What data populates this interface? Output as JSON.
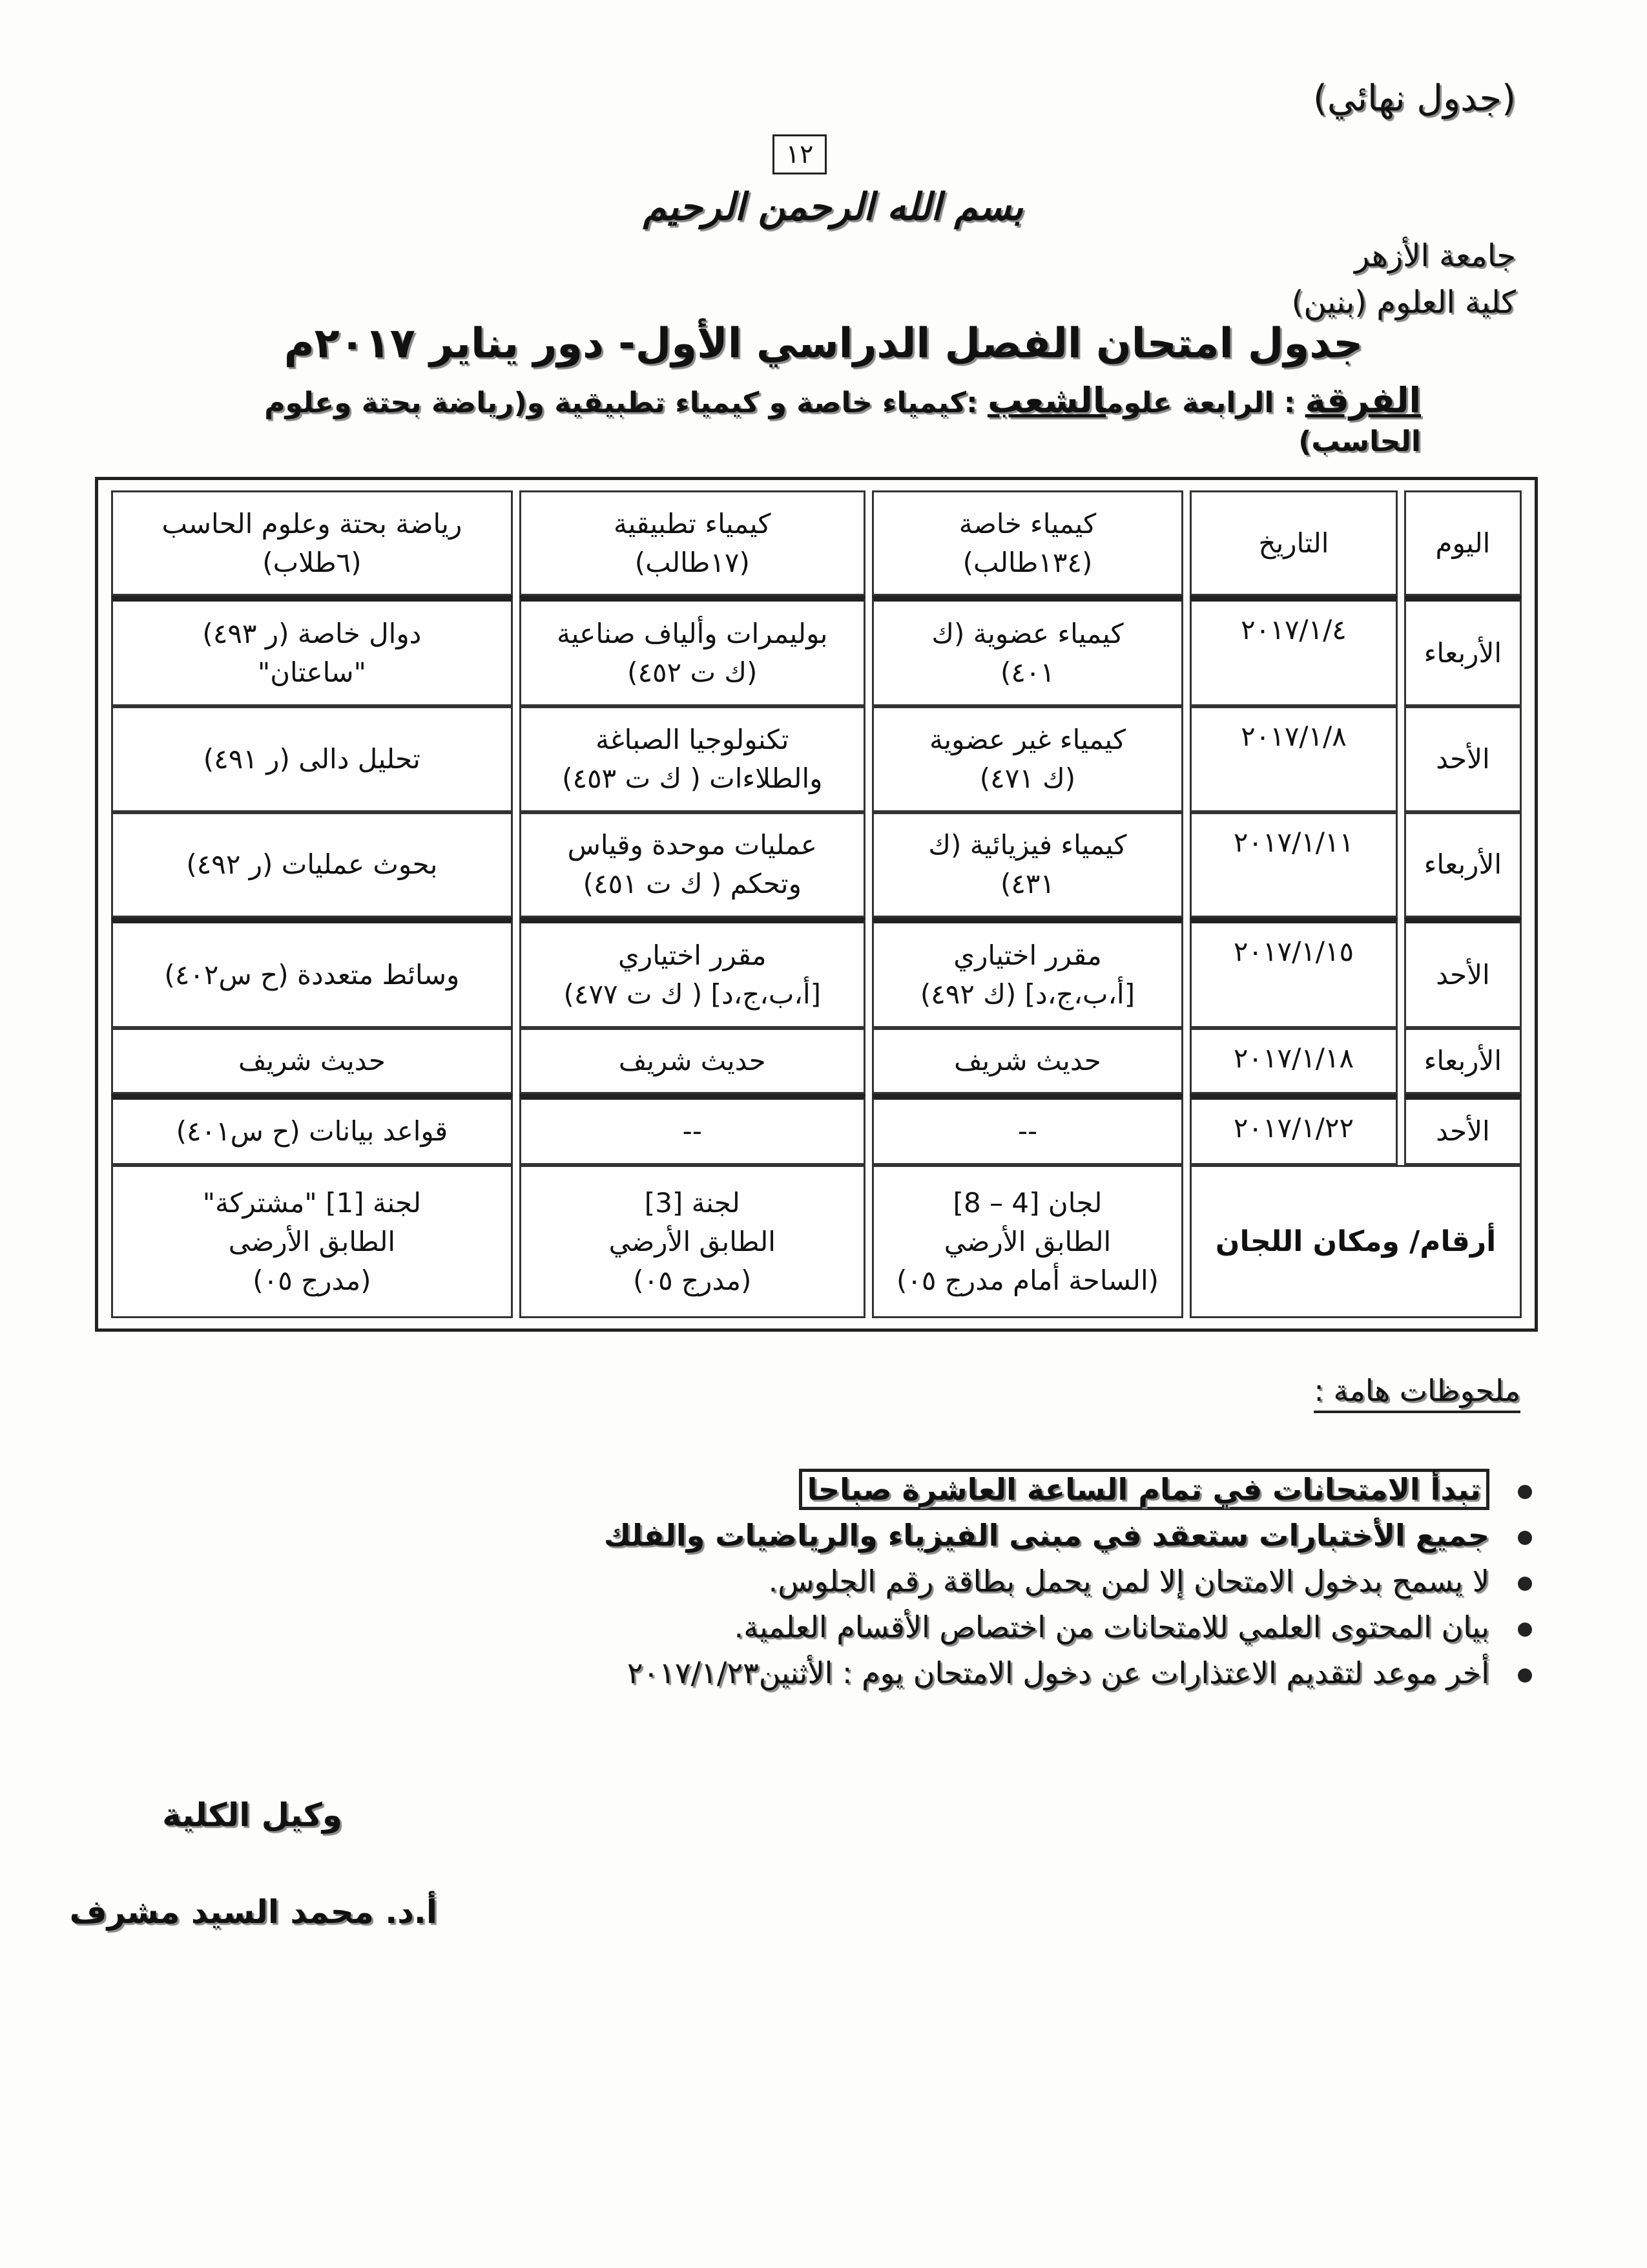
{
  "header": {
    "final_label": "(جدول نهائي)",
    "page_number": "١٢",
    "basmala": "بسم الله الرحمن الرحيم",
    "university": "جامعة الأزهر",
    "faculty": "كلية العلوم (بنين)"
  },
  "title": "جدول امتحان الفصل الدراسي الأول- دور يناير ٢٠١٧م",
  "subtitle": {
    "level_label": "الفرقة",
    "level_value": " : الرابعة علوم",
    "branches_label": "الشعب",
    "branches_value": " :كيمياء خاصة و كيمياء تطبيقية و(رياضة بحتة وعلوم الحاسب)"
  },
  "table": {
    "headers": {
      "day": "اليوم",
      "date": "التاريخ",
      "col1": [
        "كيمياء خاصة",
        "(١٣٤طالب)"
      ],
      "col2": [
        "كيمياء تطبيقية",
        "(١٧طالب)"
      ],
      "col3": [
        "رياضة بحتة وعلوم الحاسب",
        "(٦طلاب)"
      ]
    },
    "rows": [
      {
        "day": "الأربعاء",
        "date": "٢٠١٧/١/٤",
        "col1": [
          "كيمياء عضوية (ك",
          "٤٠١)"
        ],
        "col2": [
          "بوليمرات وألياف صناعية",
          "(ك ت ٤٥٢)"
        ],
        "col3": [
          "دوال خاصة (ر ٤٩٣)",
          "\"ساعتان\""
        ]
      },
      {
        "day": "الأحد",
        "date": "٢٠١٧/١/٨",
        "col1": [
          "كيمياء غير عضوية",
          "(ك ٤٧١)"
        ],
        "col2": [
          "تكنولوجيا الصباغة",
          "والطلاءات ( ك ت ٤٥٣)"
        ],
        "col3": [
          "تحليل دالى (ر ٤٩١)"
        ]
      },
      {
        "day": "الأربعاء",
        "date": "٢٠١٧/١/١١",
        "col1": [
          "كيمياء فيزيائية (ك",
          "٤٣١)"
        ],
        "col2": [
          "عمليات موحدة وقياس",
          "وتحكم ( ك ت ٤٥١)"
        ],
        "col3": [
          "بحوث عمليات (ر ٤٩٢)"
        ]
      },
      {
        "day": "الأحد",
        "date": "٢٠١٧/١/١٥",
        "col1": [
          "مقرر اختياري",
          "[أ،ب،ج،د] (ك ٤٩٢)"
        ],
        "col2": [
          "مقرر اختياري",
          "[أ،ب،ج،د] ( ك ت ٤٧٧)"
        ],
        "col3": [
          "وسائط متعددة (ح س٤٠٢)"
        ]
      },
      {
        "day": "الأربعاء",
        "date": "٢٠١٧/١/١٨",
        "col1": [
          "حديث شريف"
        ],
        "col2": [
          "حديث شريف"
        ],
        "col3": [
          "حديث شريف"
        ]
      },
      {
        "day": "الأحد",
        "date": "٢٠١٧/١/٢٢",
        "col1": [
          "--"
        ],
        "col2": [
          "--"
        ],
        "col3": [
          "قواعد بيانات (ح س٤٠١)"
        ]
      }
    ],
    "committees": {
      "label": "أرقام/ ومكان اللجان",
      "col1": [
        "لجان [4 – 8]",
        "الطابق الأرضي",
        "(الساحة أمام مدرج ٠٥)"
      ],
      "col2": [
        "لجنة [3]",
        "الطابق الأرضي",
        "(مدرج ٠٥)"
      ],
      "col3": [
        "لجنة [1] \"مشتركة\"",
        "الطابق الأرضى",
        "(مدرج ٠٥)"
      ]
    }
  },
  "notes": {
    "heading": "ملحوظات هامة :",
    "items": [
      "تبدأ الامتحانات في تمام الساعة العاشرة صباحا",
      "جميع الأختبارات ستعقد في مبنى الفيزياء والرياضيات والفلك",
      "لا يسمح بدخول الامتحان إلا لمن يحمل بطاقة رقم الجلوس.",
      "بيان المحتوى العلمي للامتحانات من اختصاص الأقسام العلمية.",
      "أخر موعد لتقديم الاعتذارات عن دخول الامتحان يوم : الأثنين٢٠١٧/١/٢٣"
    ]
  },
  "signature": {
    "role": "وكيل الكلية",
    "name": "أ.د. محمد السيد مشرف"
  }
}
